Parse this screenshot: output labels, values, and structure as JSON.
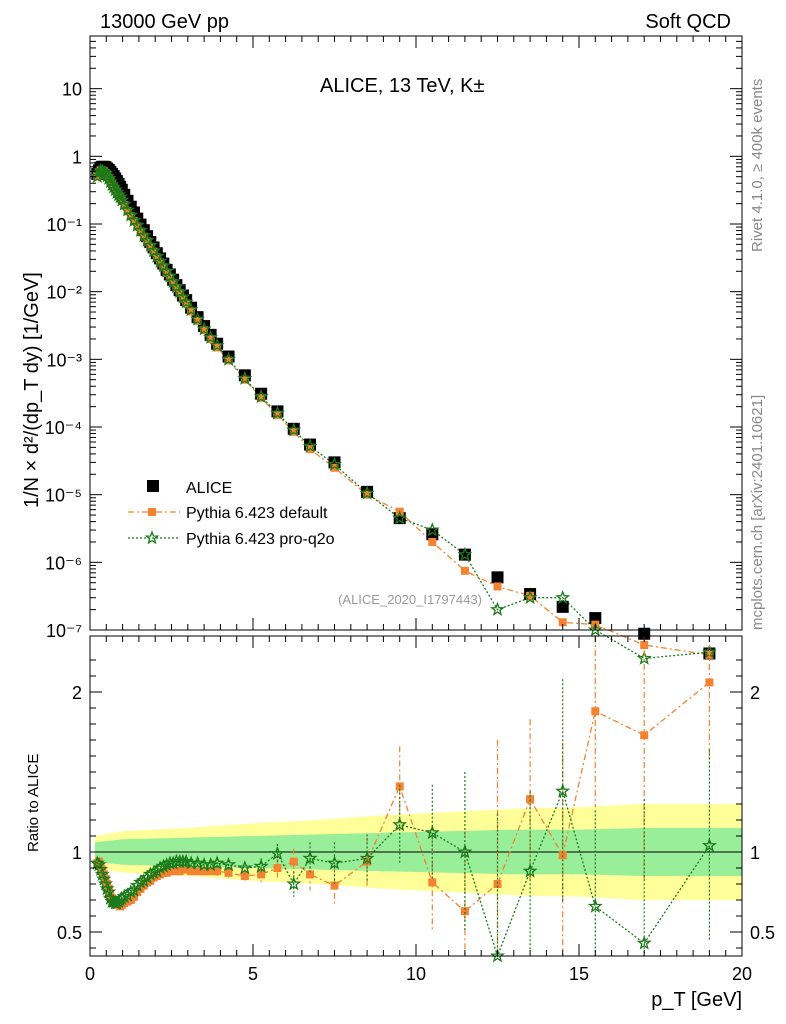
{
  "header": {
    "beam": "13000 GeV pp",
    "category": "Soft QCD"
  },
  "side": {
    "rivet": "Rivet 4.1.0, ≥ 400k events",
    "site": "mcplots.cern.ch [arXiv:2401.10621]"
  },
  "labels": {
    "watermark": "(ALICE_2020_I1797443)",
    "ratio_ylabel": "Ratio to ALICE"
  },
  "colors": {
    "data": "#000000",
    "default": "#f58231",
    "proq2o": "#1a7a1a",
    "band_inner": "#99ee99",
    "band_outer": "#ffff99"
  },
  "chart_data": [
    {
      "type": "scatter",
      "panel": "main",
      "title": "ALICE, 13 TeV, K±",
      "xlabel": "p_T [GeV]",
      "ylabel": "1/N × d²/(dp_T dy) [1/GeV]",
      "yscale": "log",
      "xlim": [
        0,
        20
      ],
      "ylim": [
        1e-07,
        60
      ],
      "xticks": [
        0,
        5,
        10,
        15,
        20
      ],
      "ytick_labels": [
        "10⁻⁷",
        "10⁻⁶",
        "10⁻⁵",
        "10⁻⁴",
        "10⁻³",
        "10⁻²",
        "10⁻¹",
        "1",
        "10"
      ],
      "legend": [
        "ALICE",
        "Pythia 6.423 default",
        "Pythia 6.423 pro-q2o"
      ],
      "legend_position": "bottom-left",
      "x": [
        0.225,
        0.275,
        0.325,
        0.375,
        0.425,
        0.475,
        0.525,
        0.575,
        0.625,
        0.675,
        0.725,
        0.775,
        0.825,
        0.875,
        0.925,
        0.975,
        1.05,
        1.15,
        1.25,
        1.35,
        1.45,
        1.55,
        1.65,
        1.75,
        1.85,
        1.95,
        2.05,
        2.15,
        2.25,
        2.35,
        2.45,
        2.55,
        2.65,
        2.75,
        2.85,
        2.95,
        3.1,
        3.3,
        3.5,
        3.7,
        3.9,
        4.25,
        4.75,
        5.25,
        5.75,
        6.25,
        6.75,
        7.5,
        8.5,
        9.5,
        10.5,
        11.5,
        12.5,
        13.5,
        14.5,
        15.5,
        17.0,
        19.0
      ],
      "series": [
        {
          "name": "ALICE",
          "values": [
            0.55,
            0.62,
            0.68,
            0.7,
            0.7,
            0.69,
            0.66,
            0.63,
            0.59,
            0.55,
            0.51,
            0.47,
            0.43,
            0.39,
            0.355,
            0.32,
            0.27,
            0.22,
            0.18,
            0.148,
            0.12,
            0.098,
            0.081,
            0.066,
            0.054,
            0.045,
            0.037,
            0.031,
            0.026,
            0.021,
            0.018,
            0.015,
            0.0125,
            0.0105,
            0.0088,
            0.0075,
            0.0058,
            0.0042,
            0.0031,
            0.0023,
            0.0017,
            0.0011,
            0.00058,
            0.00031,
            0.00017,
            9.4e-05,
            5.5e-05,
            3e-05,
            1.1e-05,
            4.5e-06,
            2.6e-06,
            1.3e-06,
            6e-07,
            3.4e-07,
            2.2e-07,
            1.5e-07,
            8.8e-08,
            4.5e-08
          ]
        },
        {
          "name": "Pythia 6.423 default",
          "values": [
            0.51,
            0.58,
            0.62,
            0.62,
            0.6,
            0.57,
            0.53,
            0.48,
            0.43,
            0.39,
            0.35,
            0.32,
            0.29,
            0.26,
            0.24,
            0.22,
            0.19,
            0.155,
            0.13,
            0.11,
            0.092,
            0.077,
            0.065,
            0.055,
            0.046,
            0.039,
            0.032,
            0.027,
            0.023,
            0.019,
            0.016,
            0.0135,
            0.0113,
            0.0095,
            0.0079,
            0.0067,
            0.0051,
            0.0037,
            0.0027,
            0.002,
            0.0015,
            0.00096,
            0.0005,
            0.00027,
            0.00015,
            8.5e-05,
            4.7e-05,
            2.5e-05,
            1e-05,
            5.6e-06,
            2e-06,
            7.5e-07,
            4.4e-07,
            3.2e-07,
            1.3e-07,
            1.2e-07,
            6e-08,
            4.3e-08
          ]
        },
        {
          "name": "Pythia 6.423 pro-q2o",
          "values": [
            0.5,
            0.57,
            0.61,
            0.6,
            0.58,
            0.55,
            0.51,
            0.47,
            0.42,
            0.38,
            0.35,
            0.32,
            0.29,
            0.27,
            0.25,
            0.225,
            0.195,
            0.16,
            0.135,
            0.112,
            0.095,
            0.08,
            0.067,
            0.057,
            0.048,
            0.04,
            0.033,
            0.028,
            0.024,
            0.02,
            0.017,
            0.014,
            0.0118,
            0.0099,
            0.0083,
            0.007,
            0.0054,
            0.0039,
            0.0028,
            0.0021,
            0.0016,
            0.001,
            0.00052,
            0.00028,
            0.00016,
            9e-05,
            5.2e-05,
            2.8e-05,
            1.05e-05,
            4.5e-06,
            3e-06,
            1.3e-06,
            2e-07,
            3e-07,
            3e-07,
            1e-07,
            3.8e-08,
            4.7e-08
          ]
        }
      ]
    },
    {
      "type": "scatter",
      "panel": "ratio",
      "ylabel": "Ratio to ALICE",
      "xlabel": "p_T [GeV]",
      "xlim": [
        0,
        20
      ],
      "ylim": [
        0.35,
        2.35
      ],
      "yticks": [
        0.5,
        1,
        2
      ],
      "x": [
        0.225,
        0.275,
        0.325,
        0.375,
        0.425,
        0.475,
        0.525,
        0.575,
        0.625,
        0.675,
        0.725,
        0.775,
        0.825,
        0.875,
        0.925,
        0.975,
        1.05,
        1.15,
        1.25,
        1.35,
        1.45,
        1.55,
        1.65,
        1.75,
        1.85,
        1.95,
        2.05,
        2.15,
        2.25,
        2.35,
        2.45,
        2.55,
        2.65,
        2.75,
        2.85,
        2.95,
        3.1,
        3.3,
        3.5,
        3.7,
        3.9,
        4.25,
        4.75,
        5.25,
        5.75,
        6.25,
        6.75,
        7.5,
        8.5,
        9.5,
        10.5,
        11.5,
        12.5,
        13.5,
        14.5,
        15.5,
        17.0,
        19.0
      ],
      "bands": {
        "x": [
          0.15,
          1,
          3,
          5,
          7,
          9,
          11,
          13,
          15,
          17,
          20
        ],
        "inner": [
          0.06,
          0.08,
          0.09,
          0.1,
          0.11,
          0.12,
          0.13,
          0.14,
          0.14,
          0.15,
          0.15
        ],
        "outer": [
          0.1,
          0.13,
          0.15,
          0.18,
          0.2,
          0.23,
          0.25,
          0.27,
          0.28,
          0.3,
          0.3
        ]
      },
      "series": [
        {
          "name": "Pythia 6.423 default",
          "values": [
            0.93,
            0.94,
            0.91,
            0.89,
            0.86,
            0.83,
            0.8,
            0.77,
            0.73,
            0.71,
            0.69,
            0.68,
            0.67,
            0.67,
            0.66,
            0.67,
            0.68,
            0.69,
            0.7,
            0.72,
            0.75,
            0.77,
            0.79,
            0.81,
            0.82,
            0.84,
            0.85,
            0.86,
            0.87,
            0.87,
            0.88,
            0.88,
            0.88,
            0.88,
            0.89,
            0.89,
            0.88,
            0.88,
            0.88,
            0.88,
            0.88,
            0.87,
            0.85,
            0.86,
            0.9,
            0.94,
            0.86,
            0.79,
            0.94,
            1.41,
            0.81,
            0.63,
            0.8,
            1.33,
            0.98,
            1.88,
            1.73,
            2.06
          ],
          "errors": [
            0.01,
            0.01,
            0.01,
            0.01,
            0.01,
            0.01,
            0.01,
            0.01,
            0.01,
            0.01,
            0.01,
            0.01,
            0.01,
            0.01,
            0.01,
            0.01,
            0.01,
            0.01,
            0.01,
            0.01,
            0.01,
            0.01,
            0.01,
            0.01,
            0.01,
            0.01,
            0.01,
            0.01,
            0.01,
            0.01,
            0.01,
            0.01,
            0.01,
            0.02,
            0.02,
            0.02,
            0.02,
            0.02,
            0.02,
            0.02,
            0.03,
            0.03,
            0.04,
            0.05,
            0.06,
            0.08,
            0.1,
            0.13,
            0.15,
            0.25,
            0.3,
            0.5,
            0.9,
            0.5,
            0.7,
            0.6,
            0.9,
            0.5
          ]
        },
        {
          "name": "Pythia 6.423 pro-q2o",
          "values": [
            0.93,
            0.92,
            0.89,
            0.86,
            0.83,
            0.8,
            0.77,
            0.75,
            0.71,
            0.69,
            0.69,
            0.68,
            0.68,
            0.69,
            0.7,
            0.71,
            0.72,
            0.73,
            0.75,
            0.76,
            0.79,
            0.81,
            0.82,
            0.84,
            0.86,
            0.87,
            0.88,
            0.9,
            0.91,
            0.92,
            0.93,
            0.93,
            0.94,
            0.94,
            0.94,
            0.94,
            0.93,
            0.93,
            0.92,
            0.92,
            0.93,
            0.92,
            0.9,
            0.91,
            0.99,
            0.8,
            0.96,
            0.93,
            0.96,
            1.17,
            1.12,
            1.0,
            0.34,
            0.88,
            1.38,
            0.66,
            0.43,
            1.04
          ],
          "errors": [
            0.01,
            0.01,
            0.01,
            0.01,
            0.01,
            0.01,
            0.01,
            0.01,
            0.01,
            0.01,
            0.01,
            0.01,
            0.01,
            0.01,
            0.01,
            0.01,
            0.01,
            0.01,
            0.01,
            0.01,
            0.01,
            0.01,
            0.01,
            0.01,
            0.01,
            0.01,
            0.01,
            0.01,
            0.01,
            0.01,
            0.01,
            0.01,
            0.01,
            0.02,
            0.02,
            0.02,
            0.02,
            0.02,
            0.02,
            0.02,
            0.03,
            0.03,
            0.04,
            0.05,
            0.06,
            0.08,
            0.1,
            0.13,
            0.15,
            0.25,
            0.3,
            0.5,
            0.9,
            0.5,
            0.7,
            0.6,
            0.9,
            0.6
          ]
        }
      ]
    }
  ]
}
